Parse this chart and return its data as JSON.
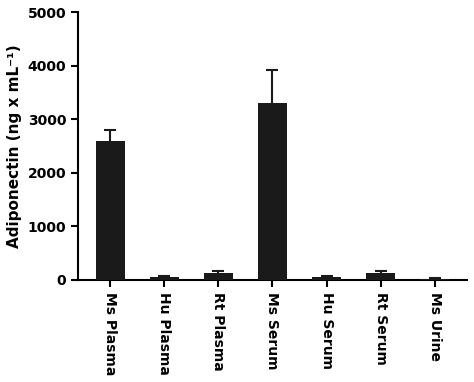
{
  "categories": [
    "Ms Plasma",
    "Hu Plasma",
    "Rt Plasma",
    "Ms Serum",
    "Hu Serum",
    "Rt Serum",
    "Ms Urine"
  ],
  "values": [
    2600,
    50,
    120,
    3300,
    50,
    120,
    20
  ],
  "errors": [
    200,
    20,
    55,
    620,
    20,
    45,
    10
  ],
  "bar_color": "#1a1a1a",
  "error_color": "#1a1a1a",
  "ylabel": "Adiponectin (ng x mL⁻¹)",
  "ylim": [
    0,
    5000
  ],
  "yticks": [
    0,
    1000,
    2000,
    3000,
    4000,
    5000
  ],
  "bar_width": 0.55,
  "background_color": "#ffffff",
  "font_family": "Arial",
  "tick_fontsize": 10,
  "label_fontsize": 11
}
